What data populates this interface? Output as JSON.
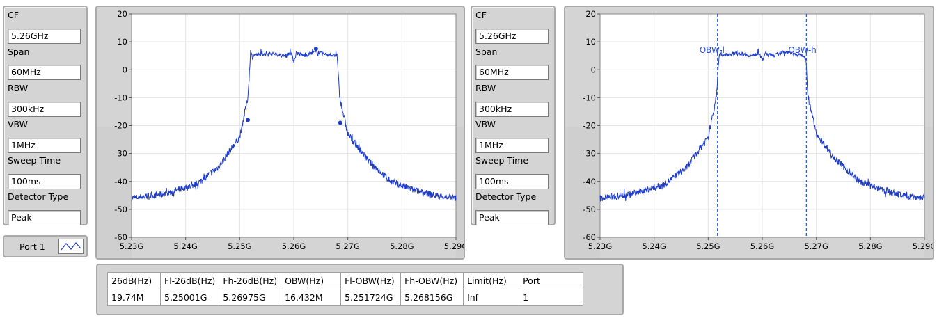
{
  "left_settings": {
    "cf_label": "CF",
    "cf_value": "5.26GHz",
    "span_label": "Span",
    "span_value": "60MHz",
    "rbw_label": "RBW",
    "rbw_value": "300kHz",
    "vbw_label": "VBW",
    "vbw_value": "1MHz",
    "sweep_label": "Sweep Time",
    "sweep_value": "100ms",
    "detector_label": "Detector Type",
    "detector_value": "Peak"
  },
  "right_settings": {
    "cf_label": "CF",
    "cf_value": "5.26GHz",
    "span_label": "Span",
    "span_value": "60MHz",
    "rbw_label": "RBW",
    "rbw_value": "300kHz",
    "vbw_label": "VBW",
    "vbw_value": "1MHz",
    "sweep_label": "Sweep Time",
    "sweep_value": "100ms",
    "detector_label": "Detector Type",
    "detector_value": "Peak"
  },
  "legend": {
    "port_label": "Port 1"
  },
  "colors": {
    "trace": "#1e3cc8",
    "marker": "#2b50d6",
    "panel": "#d4d4d4",
    "lower_band": "#d8d8d8"
  },
  "chart_data": [
    {
      "type": "line",
      "y_ticks": [
        "20",
        "10",
        "0",
        "-10",
        "-20",
        "-30",
        "-40",
        "-50",
        "-60"
      ],
      "x_ticks": [
        "5.23G",
        "5.24G",
        "5.25G",
        "5.26G",
        "5.27G",
        "5.28G",
        "5.29G"
      ],
      "xlim": [
        5.23,
        5.29
      ],
      "ylim": [
        -60,
        20
      ],
      "x_unit": "GHz",
      "series": [
        {
          "x": [
            5.23,
            5.236,
            5.242,
            5.246,
            5.25,
            5.2515,
            5.252,
            5.2555,
            5.258,
            5.2595,
            5.26,
            5.2605,
            5.262,
            5.264,
            5.266,
            5.268,
            5.2685,
            5.27,
            5.274,
            5.278,
            5.282,
            5.286,
            5.29
          ],
          "y": [
            -46,
            -44.5,
            -41,
            -35,
            -24,
            -10,
            5,
            6,
            5,
            6,
            3,
            6,
            5,
            6.5,
            5.5,
            5,
            -10,
            -23,
            -33,
            -40,
            -43,
            -45,
            -46
          ]
        }
      ],
      "markers": [
        {
          "x": 5.2515,
          "y": -18
        },
        {
          "x": 5.2641,
          "y": 7.5
        },
        {
          "x": 5.2686,
          "y": -19
        }
      ],
      "grid": true
    },
    {
      "type": "line",
      "y_ticks": [
        "20",
        "10",
        "0",
        "-10",
        "-20",
        "-30",
        "-40",
        "-50",
        "-60"
      ],
      "x_ticks": [
        "5.23G",
        "5.24G",
        "5.25G",
        "5.26G",
        "5.27G",
        "5.28G",
        "5.29G"
      ],
      "xlim": [
        5.23,
        5.29
      ],
      "ylim": [
        -60,
        20
      ],
      "x_unit": "GHz",
      "series": [
        {
          "x": [
            5.23,
            5.236,
            5.242,
            5.246,
            5.25,
            5.2515,
            5.252,
            5.2555,
            5.258,
            5.2595,
            5.26,
            5.2605,
            5.262,
            5.264,
            5.266,
            5.268,
            5.2685,
            5.27,
            5.274,
            5.278,
            5.282,
            5.286,
            5.29
          ],
          "y": [
            -46,
            -44.5,
            -41,
            -35,
            -24,
            -10,
            5,
            6,
            5,
            6,
            3,
            6,
            5,
            6.5,
            5.5,
            5,
            -10,
            -23,
            -33,
            -40,
            -43,
            -45,
            -46
          ]
        }
      ],
      "vlines": [
        {
          "x": 5.251724,
          "label": "OBW-l"
        },
        {
          "x": 5.268156,
          "label": "OBW-h"
        }
      ],
      "grid": true
    }
  ],
  "results_table": {
    "headers": [
      "26dB(Hz)",
      "Fl-26dB(Hz)",
      "Fh-26dB(Hz)",
      "OBW(Hz)",
      "Fl-OBW(Hz)",
      "Fh-OBW(Hz)",
      "Limit(Hz)",
      "Port"
    ],
    "rows": [
      [
        "19.74M",
        "5.25001G",
        "5.26975G",
        "16.432M",
        "5.251724G",
        "5.268156G",
        "Inf",
        "1"
      ]
    ]
  }
}
